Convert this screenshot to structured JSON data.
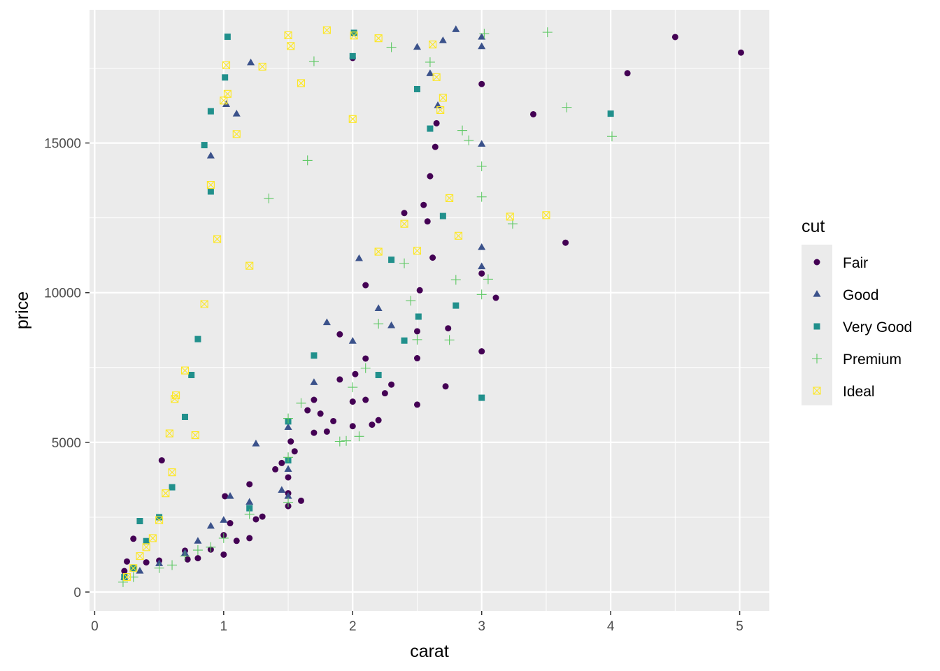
{
  "chart_data": {
    "type": "scatter",
    "xlabel": "carat",
    "ylabel": "price",
    "xlim": [
      -0.04,
      5.23
    ],
    "ylim": [
      -630,
      19450
    ],
    "x_ticks": [
      0,
      1,
      2,
      3,
      4,
      5
    ],
    "y_ticks": [
      0,
      5000,
      10000,
      15000
    ],
    "x_tick_labels": [
      "0",
      "1",
      "2",
      "3",
      "4",
      "5"
    ],
    "y_tick_labels": [
      "0",
      "5000",
      "10000",
      "15000"
    ],
    "background": "#ebebeb",
    "grid": true,
    "legend": {
      "title": "cut",
      "position": "right",
      "entries": [
        {
          "label": "Fair",
          "shape": "circle",
          "color": "#440154"
        },
        {
          "label": "Good",
          "shape": "triangle",
          "color": "#3b528b"
        },
        {
          "label": "Very Good",
          "shape": "square",
          "color": "#21908c"
        },
        {
          "label": "Premium",
          "shape": "plus",
          "color": "#5dc863"
        },
        {
          "label": "Ideal",
          "shape": "boxed-x",
          "color": "#fde725"
        }
      ]
    },
    "series": [
      {
        "name": "Fair",
        "color": "#440154",
        "shape": "circle",
        "points": [
          [
            5.01,
            18020
          ],
          [
            4.5,
            18540
          ],
          [
            4.13,
            17330
          ],
          [
            3.4,
            15960
          ],
          [
            3.65,
            11670
          ],
          [
            3.11,
            9830
          ],
          [
            3.0,
            8040
          ],
          [
            3.0,
            10640
          ],
          [
            3.0,
            16970
          ],
          [
            2.72,
            6870
          ],
          [
            2.74,
            8810
          ],
          [
            2.52,
            10080
          ],
          [
            2.5,
            6260
          ],
          [
            2.5,
            7810
          ],
          [
            2.5,
            8710
          ],
          [
            2.58,
            12380
          ],
          [
            2.55,
            12930
          ],
          [
            2.65,
            15660
          ],
          [
            2.6,
            13890
          ],
          [
            2.25,
            6640
          ],
          [
            2.3,
            6930
          ],
          [
            2.2,
            5740
          ],
          [
            2.15,
            5590
          ],
          [
            2.1,
            6420
          ],
          [
            2.0,
            5540
          ],
          [
            2.0,
            6360
          ],
          [
            2.02,
            7280
          ],
          [
            2.1,
            7800
          ],
          [
            1.9,
            7100
          ],
          [
            1.85,
            5710
          ],
          [
            1.8,
            5360
          ],
          [
            1.7,
            5320
          ],
          [
            1.65,
            6070
          ],
          [
            1.5,
            2870
          ],
          [
            1.5,
            3300
          ],
          [
            1.5,
            3830
          ],
          [
            1.55,
            4700
          ],
          [
            1.52,
            5030
          ],
          [
            1.45,
            4310
          ],
          [
            1.6,
            3050
          ],
          [
            1.3,
            2520
          ],
          [
            1.25,
            2430
          ],
          [
            1.2,
            1800
          ],
          [
            1.1,
            1710
          ],
          [
            1.0,
            1250
          ],
          [
            1.0,
            1900
          ],
          [
            1.05,
            2300
          ],
          [
            0.9,
            1420
          ],
          [
            0.8,
            1130
          ],
          [
            0.72,
            1090
          ],
          [
            0.7,
            1380
          ],
          [
            0.5,
            1050
          ],
          [
            0.52,
            4400
          ],
          [
            0.4,
            990
          ],
          [
            0.3,
            1780
          ],
          [
            0.25,
            1020
          ],
          [
            0.23,
            700
          ],
          [
            1.01,
            3200
          ],
          [
            1.2,
            3600
          ],
          [
            1.4,
            4100
          ],
          [
            1.7,
            6420
          ],
          [
            1.75,
            5960
          ],
          [
            1.9,
            8610
          ],
          [
            2.0,
            17840
          ],
          [
            2.1,
            10250
          ],
          [
            2.4,
            12660
          ],
          [
            2.62,
            11170
          ],
          [
            2.64,
            14870
          ]
        ]
      },
      {
        "name": "Good",
        "color": "#3b528b",
        "shape": "triangle",
        "points": [
          [
            2.8,
            18790
          ],
          [
            3.0,
            18540
          ],
          [
            3.0,
            18220
          ],
          [
            3.0,
            14960
          ],
          [
            3.0,
            11510
          ],
          [
            3.0,
            10870
          ],
          [
            2.66,
            16250
          ],
          [
            2.6,
            17320
          ],
          [
            2.7,
            18420
          ],
          [
            2.5,
            18200
          ],
          [
            2.3,
            8900
          ],
          [
            2.2,
            9470
          ],
          [
            2.0,
            8380
          ],
          [
            2.05,
            11140
          ],
          [
            1.5,
            3200
          ],
          [
            1.5,
            4100
          ],
          [
            1.5,
            5500
          ],
          [
            1.45,
            3400
          ],
          [
            1.2,
            3000
          ],
          [
            1.0,
            2400
          ],
          [
            0.9,
            2200
          ],
          [
            0.8,
            1700
          ],
          [
            0.7,
            1300
          ],
          [
            0.5,
            950
          ],
          [
            0.35,
            700
          ],
          [
            0.23,
            500
          ],
          [
            1.1,
            15970
          ],
          [
            1.02,
            16290
          ],
          [
            1.21,
            17680
          ],
          [
            0.9,
            14570
          ],
          [
            1.7,
            7000
          ],
          [
            1.8,
            9000
          ],
          [
            1.25,
            4950
          ],
          [
            1.05,
            3200
          ]
        ]
      },
      {
        "name": "Very Good",
        "color": "#21908c",
        "shape": "square",
        "points": [
          [
            4.0,
            15980
          ],
          [
            3.0,
            6490
          ],
          [
            2.8,
            9570
          ],
          [
            2.51,
            9200
          ],
          [
            2.4,
            8400
          ],
          [
            2.3,
            11100
          ],
          [
            2.0,
            17900
          ],
          [
            2.01,
            18680
          ],
          [
            1.03,
            18550
          ],
          [
            1.01,
            17190
          ],
          [
            0.9,
            16060
          ],
          [
            0.85,
            14930
          ],
          [
            0.9,
            13380
          ],
          [
            0.8,
            8450
          ],
          [
            0.75,
            7250
          ],
          [
            0.7,
            5850
          ],
          [
            0.6,
            3500
          ],
          [
            0.5,
            2500
          ],
          [
            0.4,
            1700
          ],
          [
            0.3,
            800
          ],
          [
            0.23,
            500
          ],
          [
            0.35,
            2370
          ],
          [
            2.6,
            15480
          ],
          [
            2.7,
            12560
          ],
          [
            2.5,
            16800
          ],
          [
            2.2,
            7250
          ],
          [
            1.5,
            4400
          ],
          [
            1.5,
            5700
          ],
          [
            1.2,
            2800
          ],
          [
            1.7,
            7900
          ]
        ]
      },
      {
        "name": "Premium",
        "color": "#5dc863",
        "shape": "plus",
        "points": [
          [
            3.51,
            18700
          ],
          [
            3.66,
            16190
          ],
          [
            4.01,
            15220
          ],
          [
            3.24,
            12300
          ],
          [
            3.0,
            13200
          ],
          [
            3.0,
            14220
          ],
          [
            3.05,
            10450
          ],
          [
            3.0,
            9940
          ],
          [
            2.9,
            15090
          ],
          [
            2.85,
            15420
          ],
          [
            2.8,
            10430
          ],
          [
            2.75,
            8420
          ],
          [
            2.5,
            8430
          ],
          [
            2.45,
            9730
          ],
          [
            2.4,
            10980
          ],
          [
            2.2,
            8960
          ],
          [
            2.1,
            7480
          ],
          [
            2.0,
            6840
          ],
          [
            1.95,
            5050
          ],
          [
            1.9,
            5030
          ],
          [
            2.05,
            5200
          ],
          [
            1.5,
            3000
          ],
          [
            1.5,
            4500
          ],
          [
            1.5,
            5800
          ],
          [
            1.2,
            2600
          ],
          [
            1.0,
            1800
          ],
          [
            0.9,
            1500
          ],
          [
            0.8,
            1400
          ],
          [
            0.7,
            1200
          ],
          [
            0.6,
            900
          ],
          [
            0.5,
            800
          ],
          [
            0.3,
            500
          ],
          [
            0.22,
            330
          ],
          [
            1.7,
            17730
          ],
          [
            2.6,
            17700
          ],
          [
            2.3,
            18200
          ],
          [
            1.35,
            13150
          ],
          [
            1.65,
            14420
          ],
          [
            3.02,
            18650
          ],
          [
            1.6,
            6310
          ]
        ]
      },
      {
        "name": "Ideal",
        "color": "#fde725",
        "shape": "boxed-x",
        "points": [
          [
            3.5,
            12590
          ],
          [
            3.22,
            12540
          ],
          [
            2.75,
            13160
          ],
          [
            2.82,
            11900
          ],
          [
            2.5,
            11400
          ],
          [
            2.68,
            16100
          ],
          [
            2.7,
            16510
          ],
          [
            2.4,
            12300
          ],
          [
            2.2,
            11370
          ],
          [
            2.01,
            18590
          ],
          [
            2.0,
            15800
          ],
          [
            1.5,
            18600
          ],
          [
            1.52,
            18240
          ],
          [
            1.0,
            16420
          ],
          [
            1.03,
            16640
          ],
          [
            1.02,
            17600
          ],
          [
            0.9,
            13600
          ],
          [
            0.85,
            9620
          ],
          [
            0.63,
            6570
          ],
          [
            0.62,
            6450
          ],
          [
            0.58,
            5300
          ],
          [
            0.6,
            4000
          ],
          [
            0.55,
            3300
          ],
          [
            0.5,
            2400
          ],
          [
            0.45,
            1800
          ],
          [
            0.4,
            1500
          ],
          [
            0.35,
            1200
          ],
          [
            0.3,
            800
          ],
          [
            0.25,
            500
          ],
          [
            1.1,
            15300
          ],
          [
            1.3,
            17550
          ],
          [
            1.6,
            17000
          ],
          [
            1.8,
            18770
          ],
          [
            2.2,
            18500
          ],
          [
            2.62,
            18290
          ],
          [
            2.65,
            17200
          ],
          [
            0.95,
            11790
          ],
          [
            1.2,
            10900
          ],
          [
            0.7,
            7400
          ],
          [
            0.78,
            5240
          ]
        ]
      }
    ]
  }
}
